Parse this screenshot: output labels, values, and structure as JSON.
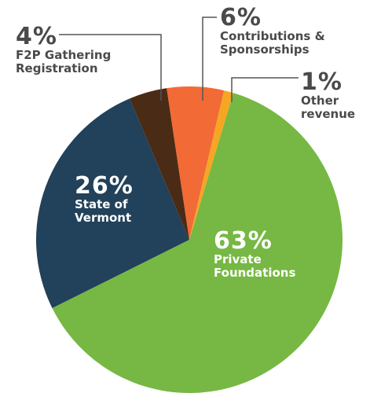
{
  "chart_data": {
    "type": "pie",
    "categories": [
      "Private Foundations",
      "State of Vermont",
      "F2P Gathering Registration",
      "Contributions & Sponsorships",
      "Other revenue"
    ],
    "values": [
      63,
      26,
      4,
      6,
      1
    ],
    "value_labels": [
      "63%",
      "26%",
      "4%",
      "6%",
      "1%"
    ],
    "colors": [
      "#76b843",
      "#22415a",
      "#4a2b16",
      "#f26a35",
      "#f5a623"
    ]
  }
}
